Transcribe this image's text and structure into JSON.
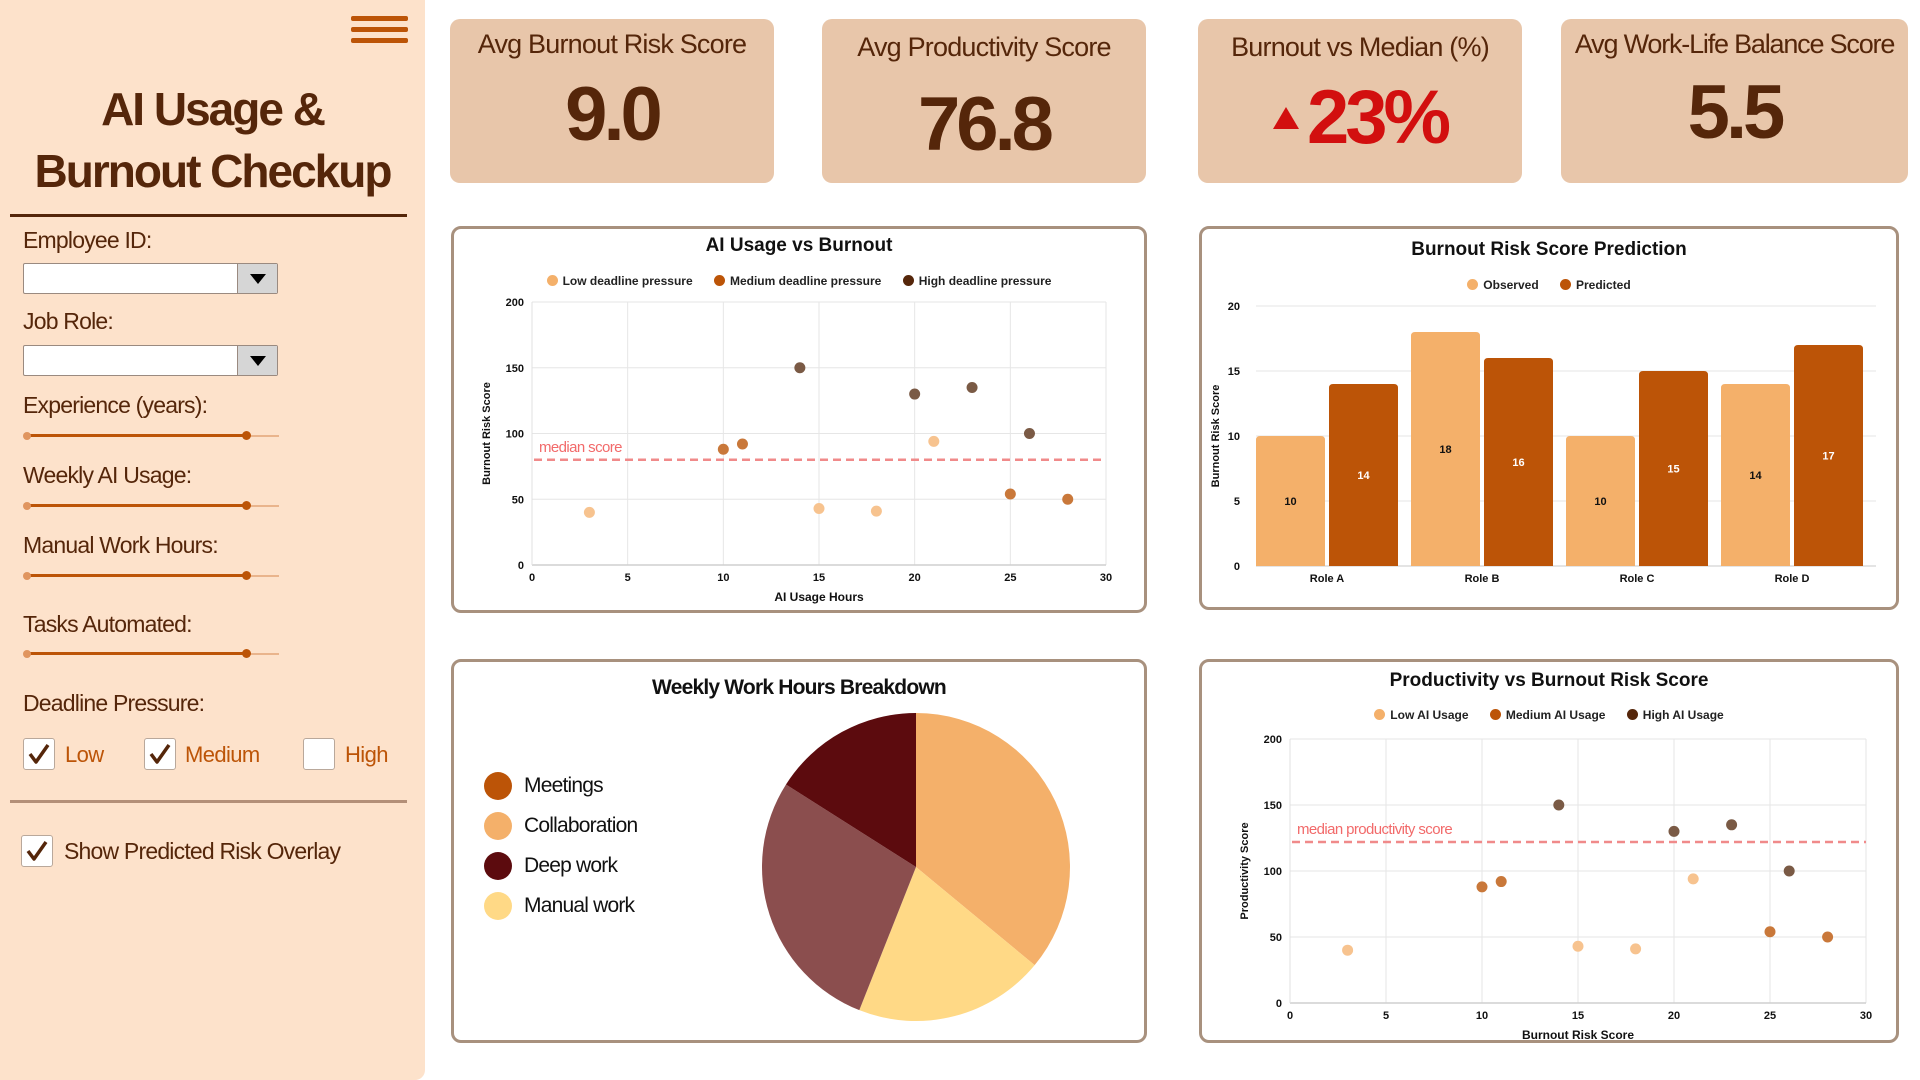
{
  "sidebar": {
    "title_line1": "AI Usage &",
    "title_line2": "Burnout Checkup",
    "employee_id": {
      "label": "Employee ID:",
      "value": ""
    },
    "job_role": {
      "label": "Job Role:",
      "value": ""
    },
    "sliders": [
      {
        "label": "Experience (years):",
        "fraction": 0.87
      },
      {
        "label": "Weekly AI Usage:",
        "fraction": 0.87
      },
      {
        "label": "Manual Work Hours:",
        "fraction": 0.87
      },
      {
        "label": "Tasks Automated:",
        "fraction": 0.87
      }
    ],
    "deadline_pressure": {
      "label": "Deadline Pressure:",
      "options": [
        {
          "label": "Low",
          "checked": true
        },
        {
          "label": "Medium",
          "checked": true
        },
        {
          "label": "High",
          "checked": false
        }
      ]
    },
    "overlay": {
      "label": "Show Predicted Risk Overlay",
      "checked": true
    },
    "menu_icon": "hamburger-icon"
  },
  "kpis": [
    {
      "label": "Avg Burnout Risk Score",
      "value": "9.0"
    },
    {
      "label": "Avg Productivity Score",
      "value": "76.8"
    },
    {
      "label": "Burnout vs Median (%)",
      "value": "23%",
      "trend_icon": "triangle-up-icon",
      "color": "#D20F0F"
    },
    {
      "label": "Avg Work-Life Balance Score",
      "value": "5.5"
    }
  ],
  "colors": {
    "low": "#F4B06A",
    "medium": "#BC5407",
    "high": "#55260A",
    "median_line": "#F08A8A",
    "observed": "#F4B06A",
    "predicted": "#BC5407"
  },
  "chart_data": [
    {
      "type": "scatter",
      "title": "AI Usage vs Burnout",
      "xlabel": "AI Usage Hours",
      "ylabel": "Burnout Risk Score",
      "xlim": [
        0,
        30
      ],
      "ylim": [
        0,
        200
      ],
      "xticks": [
        "0",
        "5",
        "10",
        "15",
        "20",
        "25",
        "30"
      ],
      "yticks": [
        "0",
        "50",
        "100",
        "150",
        "200"
      ],
      "grid": true,
      "legend_position": "top",
      "reference_line": {
        "label": "median score",
        "y": 80
      },
      "series": [
        {
          "name": "Low deadline pressure",
          "points": [
            [
              3,
              40
            ],
            [
              15,
              43
            ],
            [
              18,
              41
            ],
            [
              21,
              94
            ]
          ]
        },
        {
          "name": "Medium deadline pressure",
          "points": [
            [
              10,
              88
            ],
            [
              11,
              92
            ],
            [
              25,
              54
            ],
            [
              28,
              50
            ]
          ]
        },
        {
          "name": "High deadline pressure",
          "points": [
            [
              14,
              150
            ],
            [
              20,
              130
            ],
            [
              23,
              135
            ],
            [
              26,
              100
            ]
          ]
        }
      ]
    },
    {
      "type": "bar",
      "title": "Burnout Risk Score Prediction",
      "xlabel": "",
      "ylabel": "Burnout Risk Score",
      "categories": [
        "Role A",
        "Role B",
        "Role C",
        "Role D"
      ],
      "ylim": [
        0,
        20
      ],
      "yticks": [
        "0",
        "5",
        "10",
        "15",
        "20"
      ],
      "grid": true,
      "legend_position": "top",
      "series": [
        {
          "name": "Observed",
          "values": [
            10,
            18,
            10,
            14
          ]
        },
        {
          "name": "Predicted",
          "values": [
            14,
            16,
            15,
            17
          ]
        }
      ]
    },
    {
      "type": "pie",
      "title": "Weekly Work Hours Breakdown",
      "legend_position": "left",
      "legend": [
        "Meetings",
        "Collaboration",
        "Deep work",
        "Manual work"
      ],
      "slices": [
        {
          "name": "Collaboration",
          "value": 36,
          "color": "#F4B06A"
        },
        {
          "name": "Manual work",
          "value": 20,
          "color": "#FFD986"
        },
        {
          "name": "Meetings",
          "value": 28,
          "color": "#8B4E4E"
        },
        {
          "name": "Deep work",
          "value": 16,
          "color": "#5C0B0E"
        }
      ],
      "legend_colors": [
        "#BC5407",
        "#F4B06A",
        "#5C0B0E",
        "#FFD986"
      ]
    },
    {
      "type": "scatter",
      "title": "Productivity vs Burnout Risk Score",
      "xlabel": "Burnout Risk Score",
      "ylabel": "Productivity Score",
      "xlim": [
        0,
        30
      ],
      "ylim": [
        0,
        200
      ],
      "xticks": [
        "0",
        "5",
        "10",
        "15",
        "20",
        "25",
        "30"
      ],
      "yticks": [
        "0",
        "50",
        "100",
        "150",
        "200"
      ],
      "grid": true,
      "legend_position": "top",
      "reference_line": {
        "label": "median productivity score",
        "y": 122
      },
      "series": [
        {
          "name": "Low AI Usage",
          "points": [
            [
              3,
              40
            ],
            [
              15,
              43
            ],
            [
              18,
              41
            ],
            [
              21,
              94
            ]
          ]
        },
        {
          "name": "Medium AI Usage",
          "points": [
            [
              10,
              88
            ],
            [
              11,
              92
            ],
            [
              25,
              54
            ],
            [
              28,
              50
            ]
          ]
        },
        {
          "name": "High AI Usage",
          "points": [
            [
              14,
              150
            ],
            [
              20,
              130
            ],
            [
              23,
              135
            ],
            [
              26,
              100
            ]
          ]
        }
      ]
    }
  ]
}
